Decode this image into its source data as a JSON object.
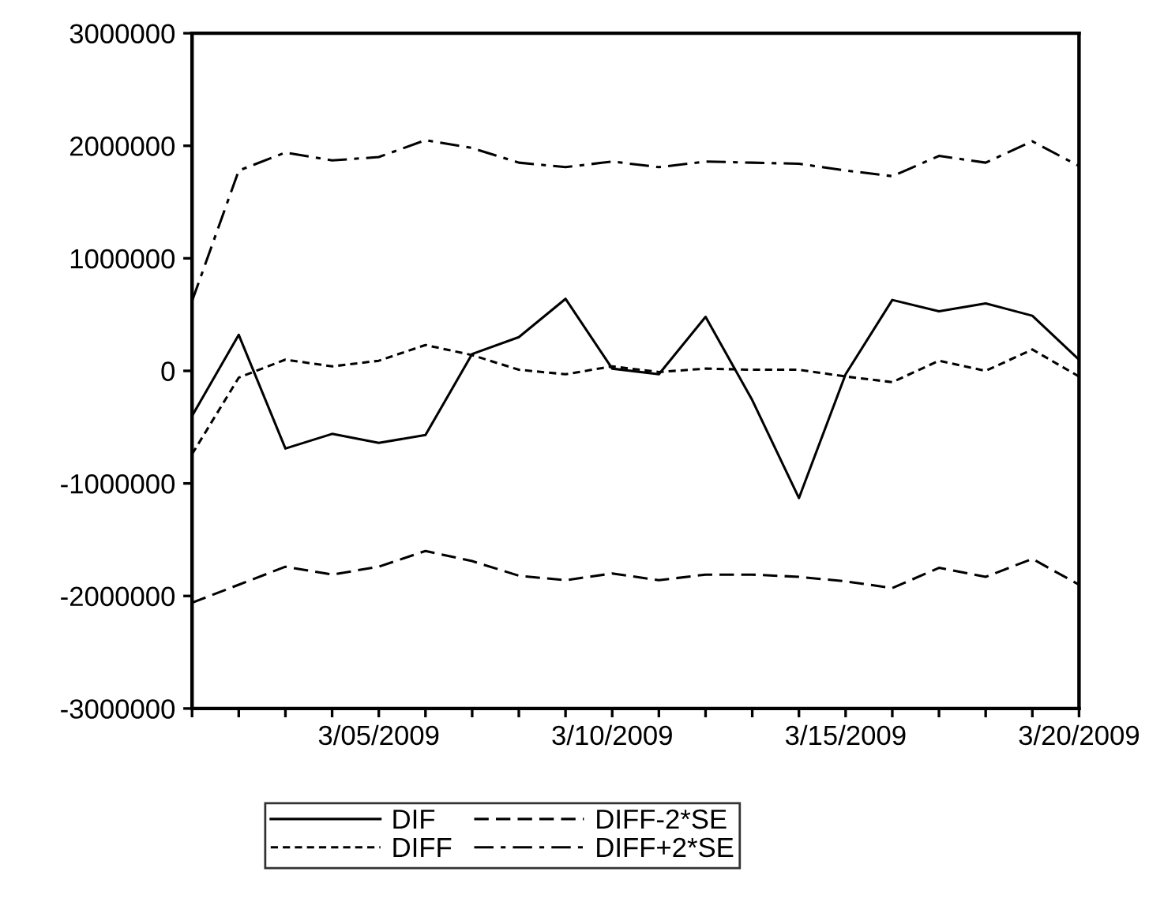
{
  "chart_data": {
    "type": "line",
    "x": [
      "2009-03-01",
      "2009-03-02",
      "2009-03-03",
      "2009-03-04",
      "2009-03-05",
      "2009-03-06",
      "2009-03-07",
      "2009-03-08",
      "2009-03-09",
      "2009-03-10",
      "2009-03-11",
      "2009-03-12",
      "2009-03-13",
      "2009-03-14",
      "2009-03-15",
      "2009-03-16",
      "2009-03-17",
      "2009-03-18",
      "2009-03-19",
      "2009-03-20"
    ],
    "series": [
      {
        "name": "DIF",
        "color": "#000000",
        "line_style": "solid",
        "values": [
          -400000,
          320000,
          -690000,
          -560000,
          -640000,
          -570000,
          150000,
          300000,
          640000,
          20000,
          -30000,
          480000,
          -260000,
          -1130000,
          -30000,
          630000,
          530000,
          600000,
          490000,
          100000
        ]
      },
      {
        "name": "DIFF",
        "color": "#000000",
        "line_style": "dotted",
        "values": [
          -740000,
          -60000,
          100000,
          40000,
          90000,
          230000,
          140000,
          10000,
          -30000,
          40000,
          -10000,
          20000,
          10000,
          10000,
          -50000,
          -100000,
          90000,
          0,
          190000,
          -50000
        ]
      },
      {
        "name": "DIFF-2*SE",
        "color": "#000000",
        "line_style": "dashed",
        "values": [
          -2060000,
          -1900000,
          -1740000,
          -1810000,
          -1740000,
          -1600000,
          -1690000,
          -1820000,
          -1860000,
          -1800000,
          -1860000,
          -1810000,
          -1810000,
          -1830000,
          -1870000,
          -1930000,
          -1750000,
          -1830000,
          -1670000,
          -1900000
        ]
      },
      {
        "name": "DIFF+2*SE",
        "color": "#000000",
        "line_style": "dashdot",
        "values": [
          620000,
          1780000,
          1940000,
          1870000,
          1900000,
          2050000,
          1980000,
          1850000,
          1810000,
          1860000,
          1810000,
          1860000,
          1850000,
          1840000,
          1780000,
          1730000,
          1910000,
          1850000,
          2040000,
          1820000
        ]
      }
    ],
    "xlim": [
      "2009-03-01",
      "2009-03-20"
    ],
    "xticks": [
      {
        "value": "2009-03-01",
        "label": null
      },
      {
        "value": "2009-03-02",
        "label": null
      },
      {
        "value": "2009-03-03",
        "label": null
      },
      {
        "value": "2009-03-04",
        "label": null
      },
      {
        "value": "2009-03-05",
        "label": "3/05/2009"
      },
      {
        "value": "2009-03-06",
        "label": null
      },
      {
        "value": "2009-03-07",
        "label": null
      },
      {
        "value": "2009-03-08",
        "label": null
      },
      {
        "value": "2009-03-09",
        "label": null
      },
      {
        "value": "2009-03-10",
        "label": "3/10/2009"
      },
      {
        "value": "2009-03-11",
        "label": null
      },
      {
        "value": "2009-03-12",
        "label": null
      },
      {
        "value": "2009-03-13",
        "label": null
      },
      {
        "value": "2009-03-14",
        "label": null
      },
      {
        "value": "2009-03-15",
        "label": "3/15/2009"
      },
      {
        "value": "2009-03-16",
        "label": null
      },
      {
        "value": "2009-03-17",
        "label": null
      },
      {
        "value": "2009-03-18",
        "label": null
      },
      {
        "value": "2009-03-19",
        "label": null
      },
      {
        "value": "2009-03-20",
        "label": "3/20/2009"
      }
    ],
    "ylim": [
      -3000000,
      3000000
    ],
    "yticks": [
      -3000000,
      -2000000,
      -1000000,
      0,
      1000000,
      2000000,
      3000000
    ],
    "grid": false,
    "legend": "bottom",
    "marker": "none"
  }
}
